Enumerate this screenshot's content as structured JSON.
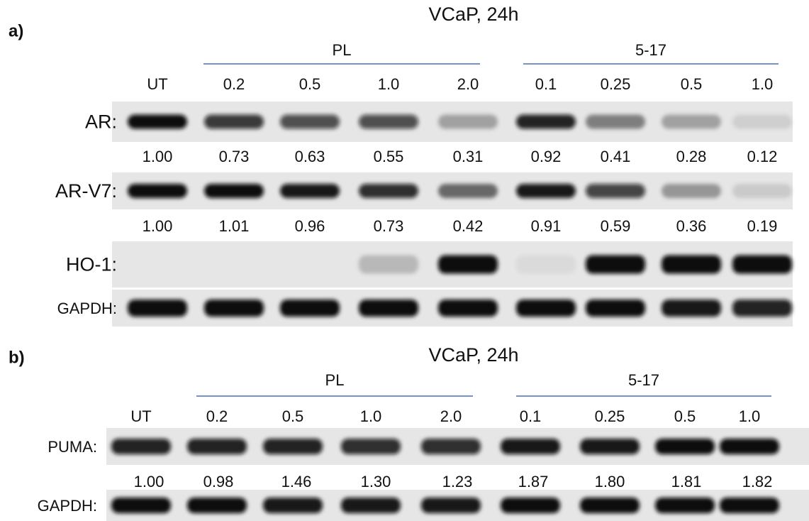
{
  "panels": [
    {
      "label": "a)",
      "title": "VCaP, 24h",
      "groups": [
        {
          "label": "PL"
        },
        {
          "label": "5-17"
        }
      ],
      "lanes": [
        "UT",
        "0.2",
        "0.5",
        "1.0",
        "2.0",
        "0.1",
        "0.25",
        "0.5",
        "1.0"
      ],
      "blots": [
        {
          "label": "AR:",
          "quant": [
            "1.00",
            "0.73",
            "0.63",
            "0.55",
            "0.31",
            "0.92",
            "0.41",
            "0.28",
            "0.12"
          ]
        },
        {
          "label": "AR-V7:",
          "quant": [
            "1.00",
            "1.01",
            "0.96",
            "0.73",
            "0.42",
            "0.91",
            "0.59",
            "0.36",
            "0.19"
          ]
        },
        {
          "label": "HO-1:"
        },
        {
          "label": "GAPDH:"
        }
      ]
    },
    {
      "label": "b)",
      "title": "VCaP, 24h",
      "groups": [
        {
          "label": "PL"
        },
        {
          "label": "5-17"
        }
      ],
      "lanes": [
        "UT",
        "0.2",
        "0.5",
        "1.0",
        "2.0",
        "0.1",
        "0.25",
        "0.5",
        "1.0"
      ],
      "blots": [
        {
          "label": "PUMA:",
          "quant": [
            "1.00",
            "0.98",
            "1.46",
            "1.30",
            "1.23",
            "1.87",
            "1.80",
            "1.81",
            "1.82"
          ]
        },
        {
          "label": "GAPDH:"
        }
      ]
    }
  ]
}
